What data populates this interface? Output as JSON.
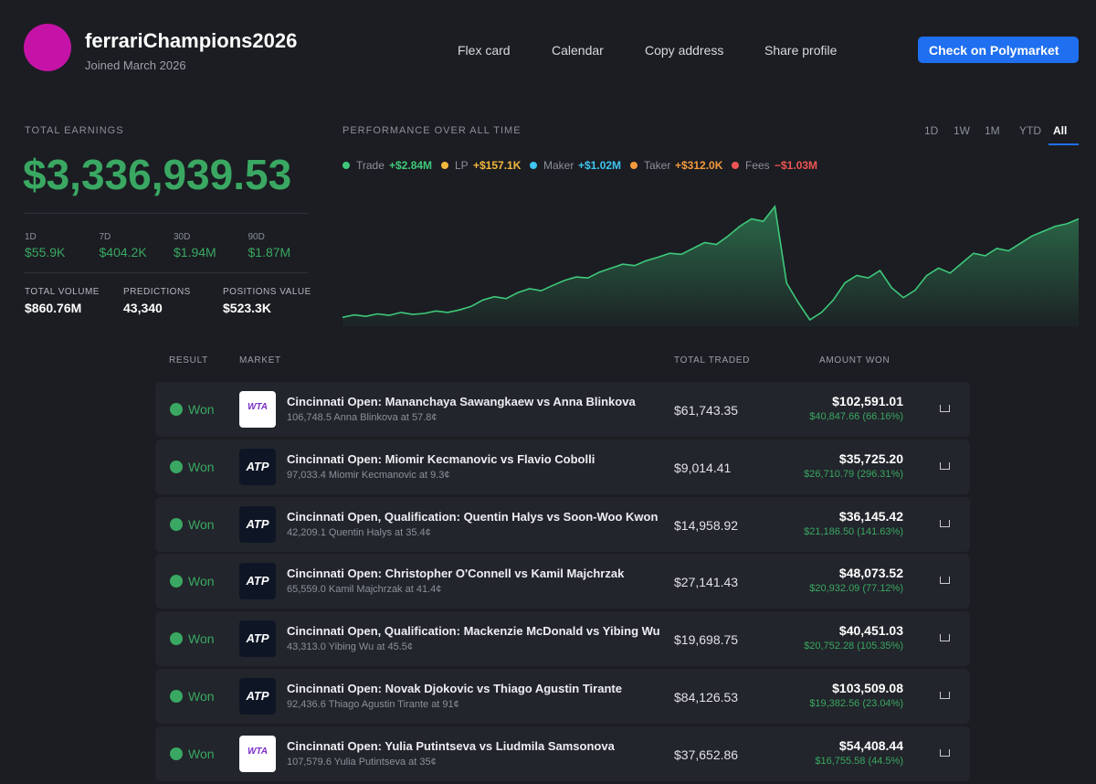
{
  "profile": {
    "username": "ferrariChampions2026",
    "joined": "Joined March 2026"
  },
  "nav": [
    "Flex card",
    "Calendar",
    "Copy address",
    "Share profile"
  ],
  "cta": "Check on Polymarket",
  "earnings": {
    "label": "TOTAL EARNINGS",
    "value": "$3,336,939.53",
    "periods": [
      {
        "label": "1D",
        "value": "$55.9K"
      },
      {
        "label": "7D",
        "value": "$404.2K"
      },
      {
        "label": "30D",
        "value": "$1.94M"
      },
      {
        "label": "90D",
        "value": "$1.87M"
      }
    ],
    "stats": [
      {
        "label": "TOTAL VOLUME",
        "value": "$860.76M"
      },
      {
        "label": "PREDICTIONS",
        "value": "43,340"
      },
      {
        "label": "POSITIONS VALUE",
        "value": "$523.3K"
      }
    ]
  },
  "performance": {
    "title": "PERFORMANCE OVER ALL TIME",
    "ranges": [
      "1D",
      "1W",
      "1M",
      "YTD",
      "All"
    ],
    "active_range": 4,
    "legend": [
      {
        "name": "Trade",
        "value": "+$2.84M",
        "color": "#3ec97a"
      },
      {
        "name": "LP",
        "value": "+$157.1K",
        "color": "#f5b83d"
      },
      {
        "name": "Maker",
        "value": "+$1.02M",
        "color": "#3ec5f0"
      },
      {
        "name": "Taker",
        "value": "+$312.0K",
        "color": "#f59a3d"
      },
      {
        "name": "Fees",
        "value": "−$1.03M",
        "color": "#f05555"
      }
    ],
    "line_color": "#3ec97a",
    "values": [
      0.2,
      0.25,
      0.22,
      0.27,
      0.24,
      0.3,
      0.26,
      0.28,
      0.33,
      0.3,
      0.35,
      0.42,
      0.55,
      0.62,
      0.58,
      0.7,
      0.78,
      0.74,
      0.85,
      0.95,
      1.02,
      1.0,
      1.12,
      1.2,
      1.28,
      1.25,
      1.35,
      1.42,
      1.5,
      1.48,
      1.6,
      1.72,
      1.68,
      1.85,
      2.05,
      2.2,
      2.15,
      2.45,
      0.9,
      0.5,
      0.15,
      0.3,
      0.55,
      0.9,
      1.05,
      1.0,
      1.15,
      0.8,
      0.6,
      0.75,
      1.05,
      1.2,
      1.1,
      1.3,
      1.5,
      1.45,
      1.6,
      1.55,
      1.7,
      1.85,
      1.95,
      2.05,
      2.1,
      2.2
    ]
  },
  "table": {
    "headers": [
      "RESULT",
      "MARKET",
      "TOTAL TRADED",
      "AMOUNT WON"
    ],
    "rows": [
      {
        "result": "Won",
        "logo": "WTA",
        "market": "Cincinnati Open: Mananchaya Sawangkaew vs Anna Blinkova",
        "position": "106,748.5 Anna Blinkova at 57.8¢",
        "total_traded": "$61,743.35",
        "amount_won": "$102,591.01",
        "profit": "$40,847.66 (66.16%)"
      },
      {
        "result": "Won",
        "logo": "ATP",
        "market": "Cincinnati Open: Miomir Kecmanovic vs Flavio Cobolli",
        "position": "97,033.4 Miomir Kecmanovic at 9.3¢",
        "total_traded": "$9,014.41",
        "amount_won": "$35,725.20",
        "profit": "$26,710.79 (296.31%)"
      },
      {
        "result": "Won",
        "logo": "ATP",
        "market": "Cincinnati Open, Qualification: Quentin Halys vs Soon-Woo Kwon",
        "position": "42,209.1 Quentin Halys at 35.4¢",
        "total_traded": "$14,958.92",
        "amount_won": "$36,145.42",
        "profit": "$21,186.50 (141.63%)"
      },
      {
        "result": "Won",
        "logo": "ATP",
        "market": "Cincinnati Open: Christopher O'Connell vs Kamil Majchrzak",
        "position": "65,559.0 Kamil Majchrzak at 41.4¢",
        "total_traded": "$27,141.43",
        "amount_won": "$48,073.52",
        "profit": "$20,932.09 (77.12%)"
      },
      {
        "result": "Won",
        "logo": "ATP",
        "market": "Cincinnati Open, Qualification: Mackenzie McDonald vs Yibing Wu",
        "position": "43,313.0 Yibing Wu at 45.5¢",
        "total_traded": "$19,698.75",
        "amount_won": "$40,451.03",
        "profit": "$20,752.28 (105.35%)"
      },
      {
        "result": "Won",
        "logo": "ATP",
        "market": "Cincinnati Open: Novak Djokovic vs Thiago Agustin Tirante",
        "position": "92,436.6 Thiago Agustin Tirante at 91¢",
        "total_traded": "$84,126.53",
        "amount_won": "$103,509.08",
        "profit": "$19,382.56 (23.04%)"
      },
      {
        "result": "Won",
        "logo": "WTA",
        "market": "Cincinnati Open: Yulia Putintseva vs Liudmila Samsonova",
        "position": "107,579.6 Yulia Putintseva at 35¢",
        "total_traded": "$37,652.86",
        "amount_won": "$54,408.44",
        "profit": "$16,755.58 (44.5%)"
      }
    ]
  }
}
